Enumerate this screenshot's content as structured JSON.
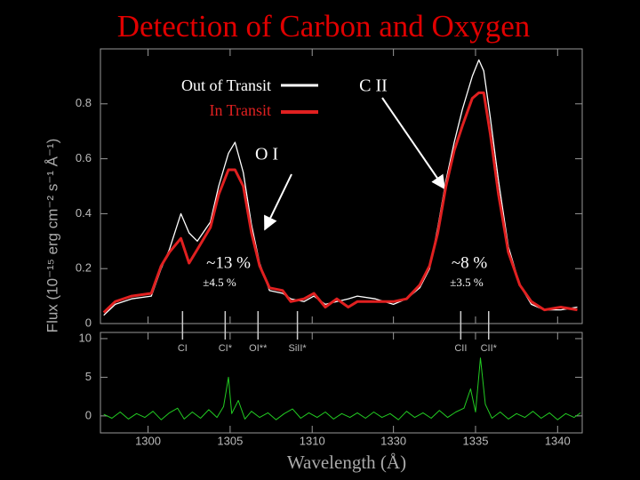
{
  "chart_data": [
    {
      "type": "line",
      "title": "Detection of Carbon and Oxygen",
      "ylabel": "Flux (10⁻¹⁵ erg cm⁻² s⁻¹ Å⁻¹)",
      "xlim_segments": [
        [
          1297.1,
          1312.45
        ],
        [
          1327.5,
          1341.5
        ]
      ],
      "ylim": [
        0,
        1.0
      ],
      "yticks": [
        0,
        0.2,
        0.4,
        0.6,
        0.8
      ],
      "xticks": [
        1300,
        1305,
        1310,
        1330,
        1335,
        1340
      ],
      "x": [
        1297.3,
        1298.0,
        1299.0,
        1300.2,
        1300.8,
        1301.3,
        1302.0,
        1302.5,
        1303.0,
        1303.8,
        1304.3,
        1304.9,
        1305.3,
        1305.8,
        1306.3,
        1306.8,
        1307.4,
        1308.2,
        1308.7,
        1309.5,
        1310.1,
        1310.8,
        1311.5,
        1312.2,
        1327.8,
        1328.9,
        1330.0,
        1330.8,
        1331.6,
        1332.2,
        1332.7,
        1333.2,
        1333.7,
        1334.2,
        1334.8,
        1335.2,
        1335.5,
        1335.9,
        1336.4,
        1337.0,
        1337.7,
        1338.4,
        1339.2,
        1340.2,
        1341.2
      ],
      "series": [
        {
          "name": "Out of Transit",
          "color": "#ffffff",
          "values": [
            0.03,
            0.07,
            0.09,
            0.1,
            0.2,
            0.27,
            0.4,
            0.33,
            0.3,
            0.37,
            0.5,
            0.62,
            0.66,
            0.55,
            0.36,
            0.22,
            0.12,
            0.11,
            0.09,
            0.08,
            0.1,
            0.07,
            0.08,
            0.09,
            0.1,
            0.09,
            0.07,
            0.09,
            0.13,
            0.2,
            0.35,
            0.52,
            0.66,
            0.78,
            0.9,
            0.96,
            0.92,
            0.75,
            0.52,
            0.28,
            0.14,
            0.07,
            0.05,
            0.05,
            0.06
          ]
        },
        {
          "name": "In Transit",
          "color": "#e02020",
          "values": [
            0.04,
            0.08,
            0.1,
            0.11,
            0.21,
            0.26,
            0.31,
            0.22,
            0.27,
            0.35,
            0.47,
            0.56,
            0.56,
            0.5,
            0.33,
            0.21,
            0.13,
            0.12,
            0.08,
            0.09,
            0.11,
            0.06,
            0.09,
            0.06,
            0.08,
            0.08,
            0.08,
            0.09,
            0.14,
            0.21,
            0.33,
            0.5,
            0.63,
            0.72,
            0.82,
            0.84,
            0.84,
            0.69,
            0.47,
            0.26,
            0.14,
            0.08,
            0.05,
            0.06,
            0.05
          ]
        }
      ],
      "annotations": [
        {
          "text": "C II"
        },
        {
          "text": "O I"
        },
        {
          "text": "~13 %"
        },
        {
          "text": "±4.5 %"
        },
        {
          "text": "~8 %"
        },
        {
          "text": "±3.5 %"
        }
      ],
      "line_ids": [
        {
          "label": "CI",
          "x": 1302.1
        },
        {
          "label": "CI*",
          "x": 1304.7
        },
        {
          "label": "OI**",
          "x": 1306.7
        },
        {
          "label": "SiII*",
          "x": 1309.1
        },
        {
          "label": "CII",
          "x": 1334.1
        },
        {
          "label": "CII*",
          "x": 1335.8
        }
      ]
    },
    {
      "type": "line",
      "xlabel": "Wavelength (Å)",
      "xlim_segments": [
        [
          1297.1,
          1312.45
        ],
        [
          1327.5,
          1341.5
        ]
      ],
      "ylim": [
        -2.2,
        10.8
      ],
      "yticks": [
        0,
        5,
        10
      ],
      "xticks": [
        1300,
        1305,
        1310,
        1330,
        1335,
        1340
      ],
      "x": [
        1297.3,
        1297.8,
        1298.3,
        1298.8,
        1299.3,
        1299.8,
        1300.3,
        1300.8,
        1301.3,
        1301.8,
        1302.2,
        1302.7,
        1303.2,
        1303.7,
        1304.2,
        1304.6,
        1304.9,
        1305.1,
        1305.5,
        1305.9,
        1306.3,
        1306.8,
        1307.3,
        1307.8,
        1308.3,
        1308.8,
        1309.3,
        1309.8,
        1310.3,
        1310.8,
        1311.3,
        1311.8,
        1312.3,
        1327.8,
        1328.3,
        1328.8,
        1329.3,
        1329.8,
        1330.3,
        1330.8,
        1331.3,
        1331.8,
        1332.3,
        1332.8,
        1333.3,
        1333.8,
        1334.3,
        1334.7,
        1335.0,
        1335.3,
        1335.6,
        1336.0,
        1336.5,
        1337.0,
        1337.5,
        1338.0,
        1338.5,
        1339.0,
        1339.5,
        1340.0,
        1340.5,
        1341.0,
        1341.4
      ],
      "series": [
        {
          "color": "#22cc22",
          "values": [
            0.2,
            -0.3,
            0.5,
            -0.4,
            0.3,
            -0.2,
            0.6,
            -0.5,
            0.4,
            1.0,
            -0.4,
            0.5,
            -0.3,
            0.8,
            -0.2,
            1.2,
            5.0,
            0.3,
            2.0,
            -0.4,
            0.6,
            -0.2,
            0.4,
            -0.5,
            0.3,
            0.9,
            -0.3,
            0.4,
            -0.2,
            0.5,
            -0.4,
            0.3,
            -0.2,
            0.4,
            -0.3,
            0.5,
            -0.2,
            0.3,
            -0.5,
            0.6,
            -0.2,
            0.4,
            -0.3,
            0.7,
            -0.2,
            0.5,
            1.0,
            3.5,
            0.5,
            7.5,
            1.5,
            -0.3,
            0.5,
            -0.4,
            0.3,
            -0.2,
            0.6,
            -0.3,
            0.4,
            -0.5,
            0.3,
            -0.2,
            0.4
          ]
        }
      ]
    }
  ]
}
